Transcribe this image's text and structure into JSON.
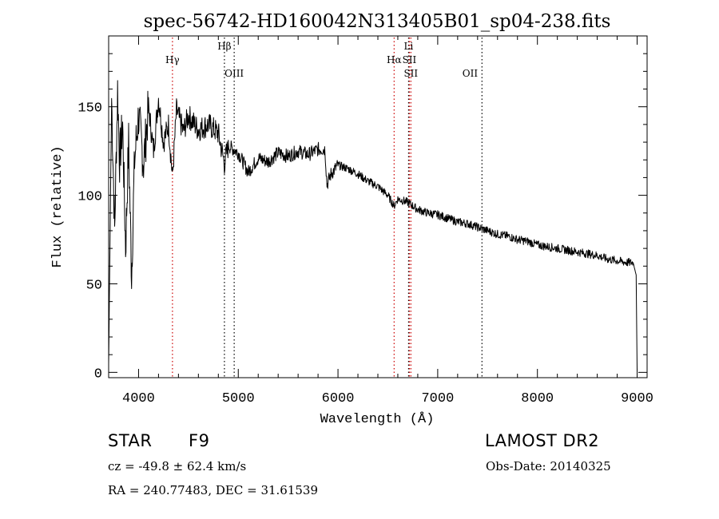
{
  "chart_data": {
    "type": "line",
    "title": "spec-56742-HD160042N313405B01_sp04-238.fits",
    "xlabel": "Wavelength (Å)",
    "ylabel": "Flux (relative)",
    "xlim": [
      3700,
      9100
    ],
    "ylim": [
      -3,
      190
    ],
    "xticks": [
      4000,
      5000,
      6000,
      7000,
      8000,
      9000
    ],
    "xtick_labels": [
      "4000",
      "5000",
      "6000",
      "7000",
      "8000",
      "9000"
    ],
    "yticks": [
      0,
      50,
      100,
      150
    ],
    "ytick_labels": [
      "0",
      "50",
      "100",
      "150"
    ],
    "series": [
      {
        "name": "spectrum",
        "x": [
          3700,
          3730,
          3760,
          3790,
          3810,
          3840,
          3870,
          3900,
          3930,
          3960,
          4000,
          4050,
          4100,
          4150,
          4200,
          4250,
          4300,
          4340,
          4380,
          4450,
          4500,
          4600,
          4700,
          4800,
          4861,
          4900,
          5000,
          5100,
          5200,
          5300,
          5400,
          5500,
          5600,
          5700,
          5800,
          5870,
          5890,
          5930,
          6000,
          6100,
          6200,
          6300,
          6400,
          6500,
          6563,
          6600,
          6700,
          6800,
          6900,
          7000,
          7100,
          7200,
          7300,
          7400,
          7500,
          7600,
          7700,
          7800,
          7900,
          8000,
          8100,
          8200,
          8300,
          8400,
          8500,
          8600,
          8700,
          8800,
          8900,
          8960,
          8990,
          9000
        ],
        "y": [
          5,
          155,
          80,
          160,
          120,
          140,
          70,
          130,
          55,
          120,
          145,
          118,
          150,
          125,
          155,
          130,
          140,
          110,
          148,
          136,
          145,
          137,
          140,
          135,
          118,
          128,
          124,
          113,
          121,
          119,
          124,
          122,
          125,
          123,
          126,
          126,
          106,
          112,
          117,
          115,
          112,
          108,
          105,
          100,
          94,
          98,
          96,
          92,
          90,
          89,
          87,
          85,
          84,
          82,
          80,
          78,
          77,
          75,
          74,
          72,
          71,
          70,
          69,
          68,
          67,
          66,
          64,
          63,
          62,
          62,
          55,
          1
        ]
      }
    ],
    "annotations": [
      {
        "label": "Hγ",
        "x": 4340,
        "row": 2,
        "color": "#000000"
      },
      {
        "label": "Hβ",
        "x": 4861,
        "row": 1,
        "color": "#000000"
      },
      {
        "label": "OIII",
        "x": 4959,
        "row": 3,
        "color": "#000000"
      },
      {
        "label": "Li",
        "x": 6708,
        "row": 1,
        "color": "#000000"
      },
      {
        "label": "Hα",
        "x": 6563,
        "row": 2,
        "color": "#000000"
      },
      {
        "label": "SII",
        "x": 6716,
        "row": 2,
        "color": "#000000"
      },
      {
        "label": "SII",
        "x": 6731,
        "row": 3,
        "color": "#000000"
      },
      {
        "label": "OII",
        "x": 7325,
        "row": 3,
        "color": "#000000"
      }
    ],
    "annotation_lines": [
      {
        "x": 4340,
        "color": "#cc0000"
      },
      {
        "x": 4861,
        "color": "#000000"
      },
      {
        "x": 4959,
        "color": "#000000"
      },
      {
        "x": 6563,
        "color": "#cc0000"
      },
      {
        "x": 6708,
        "color": "#000000"
      },
      {
        "x": 6716,
        "color": "#cc0000"
      },
      {
        "x": 6731,
        "color": "#cc0000"
      },
      {
        "x": 7444,
        "color": "#000000"
      }
    ]
  },
  "info": {
    "object_class": "STAR",
    "subclass": "F9",
    "survey": "LAMOST DR2",
    "cz": "cz = -49.8 ± 62.4 km/s",
    "obs_date": "Obs-Date: 20140325",
    "coords": "RA = 240.77483, DEC =  31.61539"
  }
}
